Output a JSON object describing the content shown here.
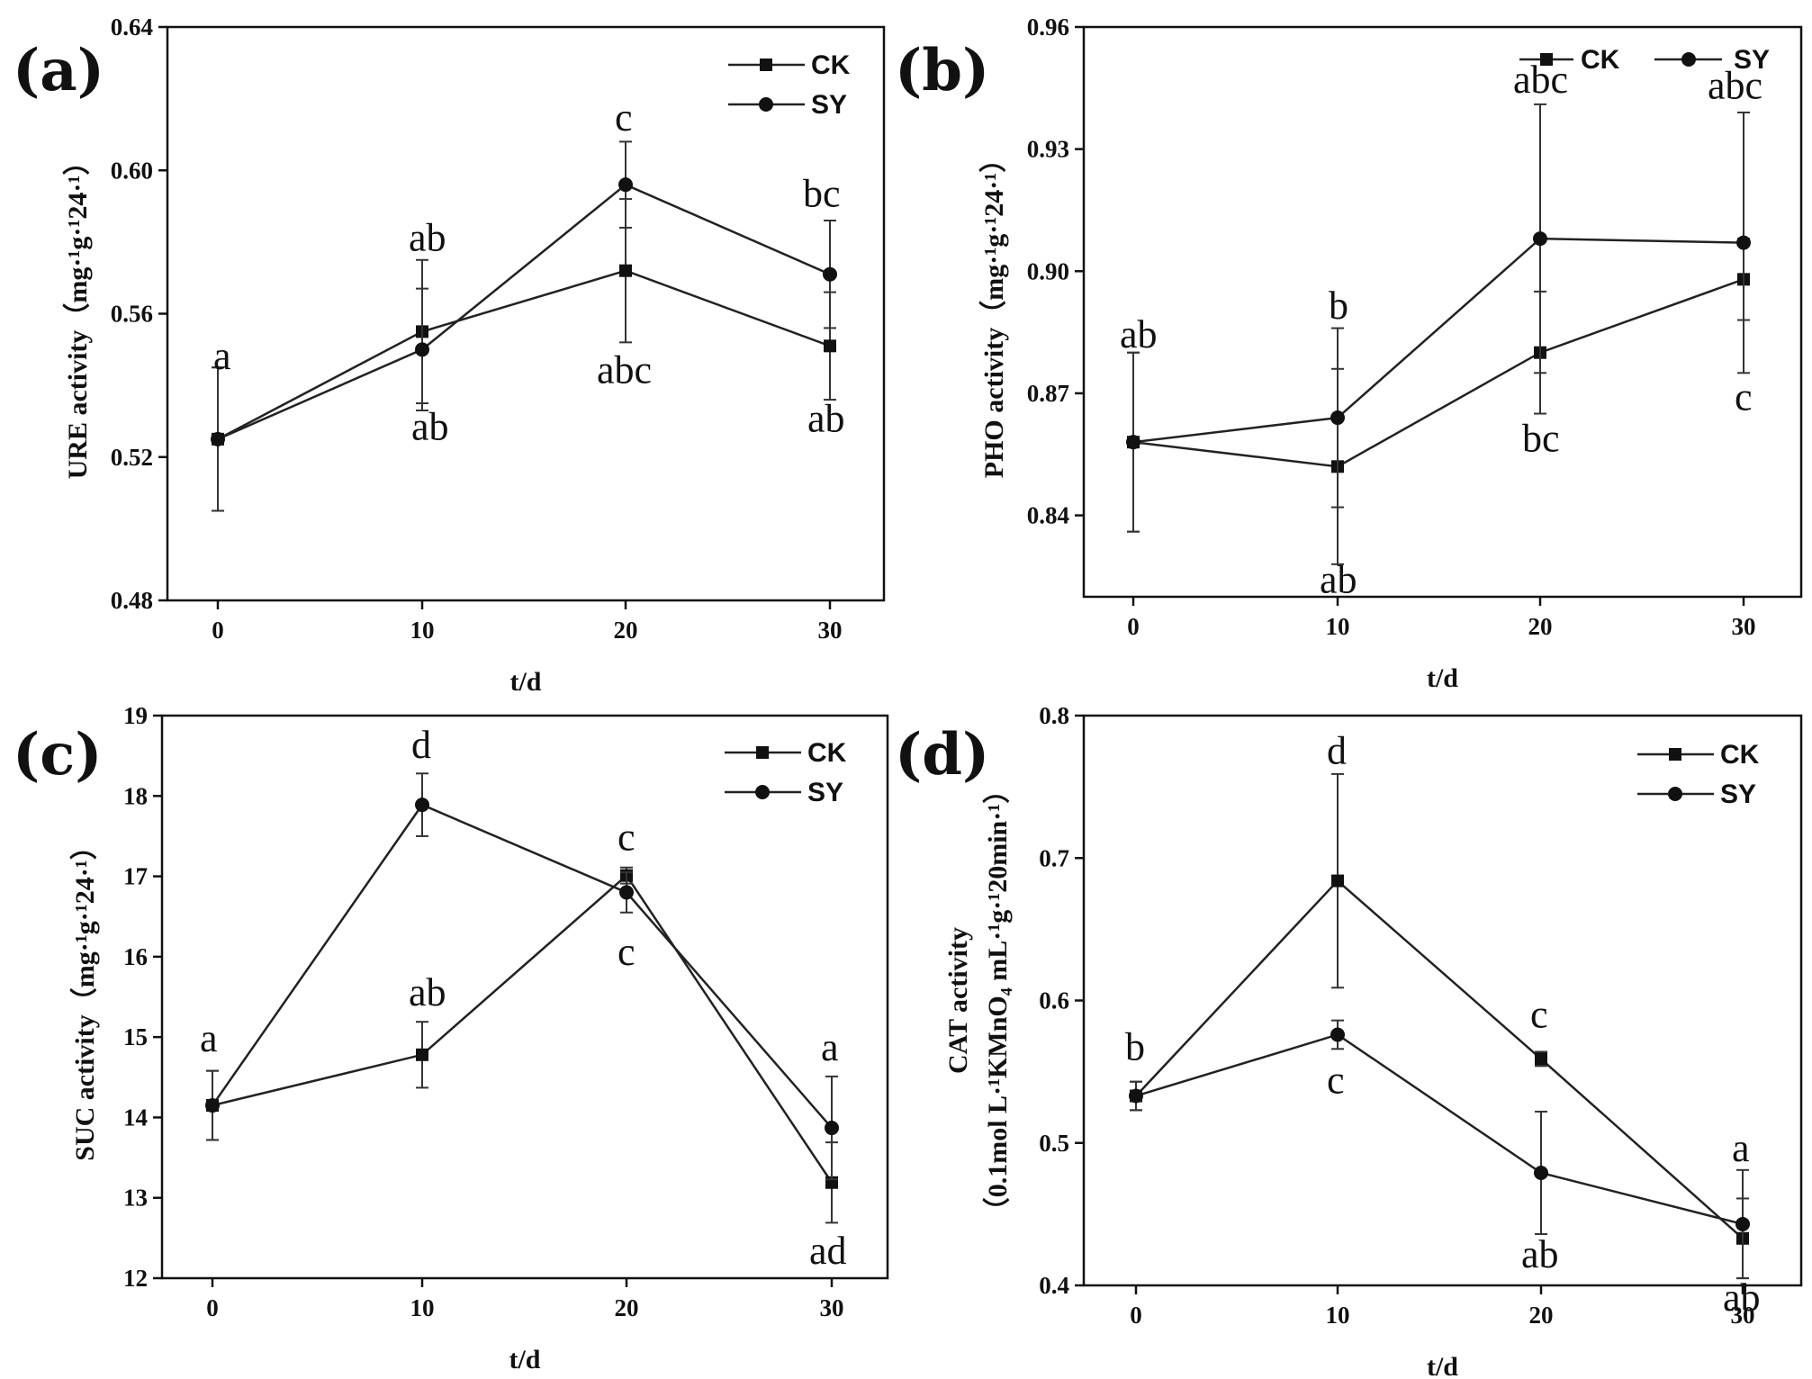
{
  "chart_data": [
    {
      "panel": "(a)",
      "type": "line",
      "x": [
        0,
        10,
        20,
        30
      ],
      "xlabel": "t/d",
      "ylabel": "URE activity（mg·¹g·¹24·¹）",
      "ylim": [
        0.48,
        0.64
      ],
      "yticks": [
        0.48,
        0.52,
        0.56,
        0.6,
        0.64
      ],
      "ytick_labels": [
        "0.48",
        "0.52",
        "0.56",
        "0.60",
        "0.64"
      ],
      "xtick_labels": [
        "0",
        "10",
        "20",
        "30"
      ],
      "legend": [
        "CK",
        "SY"
      ],
      "legend_position": "top-right",
      "series": [
        {
          "name": "CK",
          "marker": "square",
          "values": [
            0.525,
            0.555,
            0.572,
            0.551
          ],
          "errors": [
            0.02,
            0.02,
            0.02,
            0.015
          ],
          "annotations": [
            "",
            "ab",
            "abc",
            "ab"
          ]
        },
        {
          "name": "SY",
          "marker": "circle",
          "values": [
            0.525,
            0.55,
            0.596,
            0.571
          ],
          "errors": [
            0.02,
            0.017,
            0.012,
            0.015
          ],
          "annotations": [
            "a",
            "ab",
            "c",
            "bc"
          ]
        }
      ]
    },
    {
      "panel": "(b)",
      "type": "line",
      "x": [
        0,
        10,
        20,
        30
      ],
      "xlabel": "t/d",
      "ylabel": "PHO activity（mg·¹g·¹24·¹）",
      "ylim": [
        0.82,
        0.96
      ],
      "yticks": [
        0.84,
        0.87,
        0.9,
        0.93,
        0.96
      ],
      "ytick_labels": [
        "0.84",
        "0.87",
        "0.90",
        "0.93",
        "0.96"
      ],
      "xtick_labels": [
        "0",
        "10",
        "20",
        "30"
      ],
      "legend": [
        "CK",
        "SY"
      ],
      "legend_position": "top-right",
      "series": [
        {
          "name": "CK",
          "marker": "square",
          "values": [
            0.858,
            0.852,
            0.88,
            0.898
          ],
          "errors": [
            0.022,
            0.024,
            0.015,
            0.01
          ],
          "annotations": [
            "",
            "ab",
            "bc",
            "c"
          ]
        },
        {
          "name": "SY",
          "marker": "circle",
          "values": [
            0.858,
            0.864,
            0.908,
            0.907
          ],
          "errors": [
            0.022,
            0.022,
            0.033,
            0.032
          ],
          "annotations": [
            "ab",
            "b",
            "abc",
            "abc"
          ]
        }
      ]
    },
    {
      "panel": "(c)",
      "type": "line",
      "x": [
        0,
        10,
        20,
        30
      ],
      "xlabel": "t/d",
      "ylabel": "SUC activity（mg·¹g·¹24·¹）",
      "ylim": [
        12,
        19
      ],
      "yticks": [
        12,
        13,
        14,
        15,
        16,
        17,
        18,
        19
      ],
      "ytick_labels": [
        "12",
        "13",
        "14",
        "15",
        "16",
        "17",
        "18",
        "19"
      ],
      "xtick_labels": [
        "0",
        "10",
        "20",
        "30"
      ],
      "legend": [
        "CK",
        "SY"
      ],
      "legend_position": "top-right",
      "series": [
        {
          "name": "CK",
          "marker": "square",
          "values": [
            14.15,
            14.78,
            17.01,
            13.19
          ],
          "errors": [
            0.43,
            0.41,
            0.1,
            0.5
          ],
          "annotations": [
            "",
            "ab",
            "",
            "ad"
          ]
        },
        {
          "name": "SY",
          "marker": "circle",
          "values": [
            14.15,
            17.89,
            16.8,
            13.87
          ],
          "errors": [
            0.43,
            0.39,
            0.25,
            0.64
          ],
          "annotations": [
            "a",
            "d",
            "c",
            "a"
          ]
        }
      ],
      "extra_annotations": [
        "c"
      ]
    },
    {
      "panel": "(d)",
      "type": "line",
      "x": [
        0,
        10,
        20,
        30
      ],
      "xlabel": "t/d",
      "ylabel": "CAT activity",
      "ylabel2": "（0.1mol L·¹KMnO₄ mL·¹g·¹20min·¹）",
      "ylim": [
        0.4,
        0.8
      ],
      "yticks": [
        0.4,
        0.5,
        0.6,
        0.7,
        0.8
      ],
      "ytick_labels": [
        "0.4",
        "0.5",
        "0.6",
        "0.7",
        "0.8"
      ],
      "xtick_labels": [
        "0",
        "10",
        "20",
        "30"
      ],
      "legend": [
        "CK",
        "SY"
      ],
      "legend_position": "top-right",
      "series": [
        {
          "name": "CK",
          "marker": "square",
          "values": [
            0.533,
            0.684,
            0.559,
            0.433
          ],
          "errors": [
            0.01,
            0.075,
            0.005,
            0.028
          ],
          "annotations": [
            "",
            "d",
            "c",
            "ab"
          ]
        },
        {
          "name": "SY",
          "marker": "circle",
          "values": [
            0.533,
            0.576,
            0.479,
            0.443
          ],
          "errors": [
            0.01,
            0.01,
            0.043,
            0.038
          ],
          "annotations": [
            "b",
            "c",
            "ab",
            "a"
          ]
        }
      ]
    }
  ]
}
